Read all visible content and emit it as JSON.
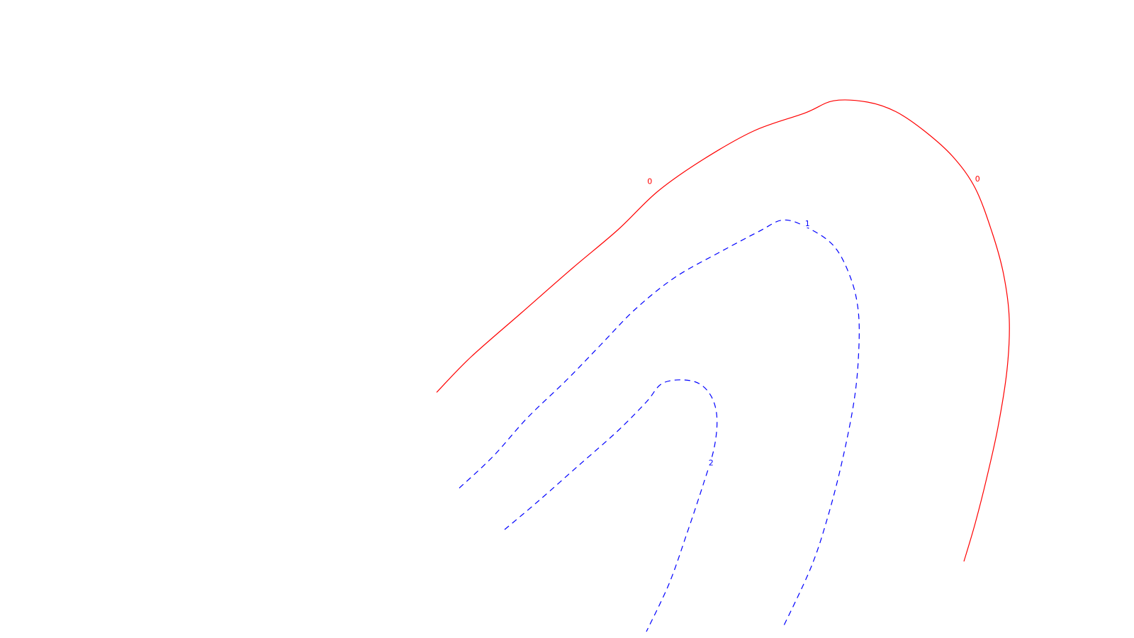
{
  "chart_data": {
    "type": "contour",
    "title": "",
    "xlabel": "",
    "ylabel": "",
    "grid": false,
    "axes_visible": false,
    "levels": [
      {
        "level_label": "0",
        "color": "#ff0000",
        "line_style": "solid",
        "paths": [
          [
            [
              0.385,
              0.385
            ],
            [
              0.415,
              0.44
            ],
            [
              0.46,
              0.51
            ],
            [
              0.505,
              0.58
            ],
            [
              0.545,
              0.64
            ],
            [
              0.58,
              0.7
            ],
            [
              0.62,
              0.75
            ],
            [
              0.665,
              0.795
            ],
            [
              0.71,
              0.823
            ],
            [
              0.735,
              0.842
            ],
            [
              0.765,
              0.84
            ],
            [
              0.79,
              0.825
            ],
            [
              0.815,
              0.795
            ],
            [
              0.84,
              0.755
            ],
            [
              0.86,
              0.705
            ],
            [
              0.875,
              0.635
            ],
            [
              0.885,
              0.57
            ],
            [
              0.89,
              0.5
            ],
            [
              0.888,
              0.42
            ],
            [
              0.88,
              0.33
            ],
            [
              0.87,
              0.25
            ],
            [
              0.86,
              0.18
            ],
            [
              0.85,
              0.12
            ]
          ]
        ],
        "labels": [
          {
            "text": "0",
            "at": [
              0.573,
              0.716
            ]
          },
          {
            "text": "0",
            "at": [
              0.862,
              0.72
            ]
          }
        ]
      },
      {
        "level_label": "1",
        "color": "#0000ff",
        "line_style": "dashed",
        "paths": [
          [
            [
              0.405,
              0.235
            ],
            [
              0.435,
              0.285
            ],
            [
              0.465,
              0.345
            ],
            [
              0.5,
              0.405
            ],
            [
              0.53,
              0.46
            ],
            [
              0.56,
              0.515
            ],
            [
              0.595,
              0.565
            ],
            [
              0.635,
              0.605
            ],
            [
              0.67,
              0.638
            ],
            [
              0.69,
              0.655
            ],
            [
              0.71,
              0.645
            ],
            [
              0.735,
              0.615
            ],
            [
              0.75,
              0.565
            ],
            [
              0.757,
              0.51
            ],
            [
              0.757,
              0.44
            ],
            [
              0.753,
              0.37
            ],
            [
              0.743,
              0.28
            ],
            [
              0.73,
              0.19
            ],
            [
              0.715,
              0.11
            ],
            [
              0.69,
              0.015
            ]
          ]
        ],
        "labels": [
          {
            "text": "1",
            "at": [
              0.712,
              0.65
            ]
          }
        ]
      },
      {
        "level_label": "2",
        "color": "#0000ff",
        "line_style": "dashed",
        "paths": [
          [
            [
              0.445,
              0.17
            ],
            [
              0.475,
              0.215
            ],
            [
              0.51,
              0.27
            ],
            [
              0.545,
              0.325
            ],
            [
              0.57,
              0.37
            ],
            [
              0.585,
              0.4
            ],
            [
              0.61,
              0.403
            ],
            [
              0.625,
              0.385
            ],
            [
              0.632,
              0.35
            ],
            [
              0.63,
              0.3
            ],
            [
              0.62,
              0.24
            ],
            [
              0.605,
              0.16
            ],
            [
              0.59,
              0.085
            ],
            [
              0.57,
              0.01
            ]
          ]
        ],
        "labels": [
          {
            "text": "2",
            "at": [
              0.627,
              0.275
            ]
          }
        ]
      }
    ]
  }
}
